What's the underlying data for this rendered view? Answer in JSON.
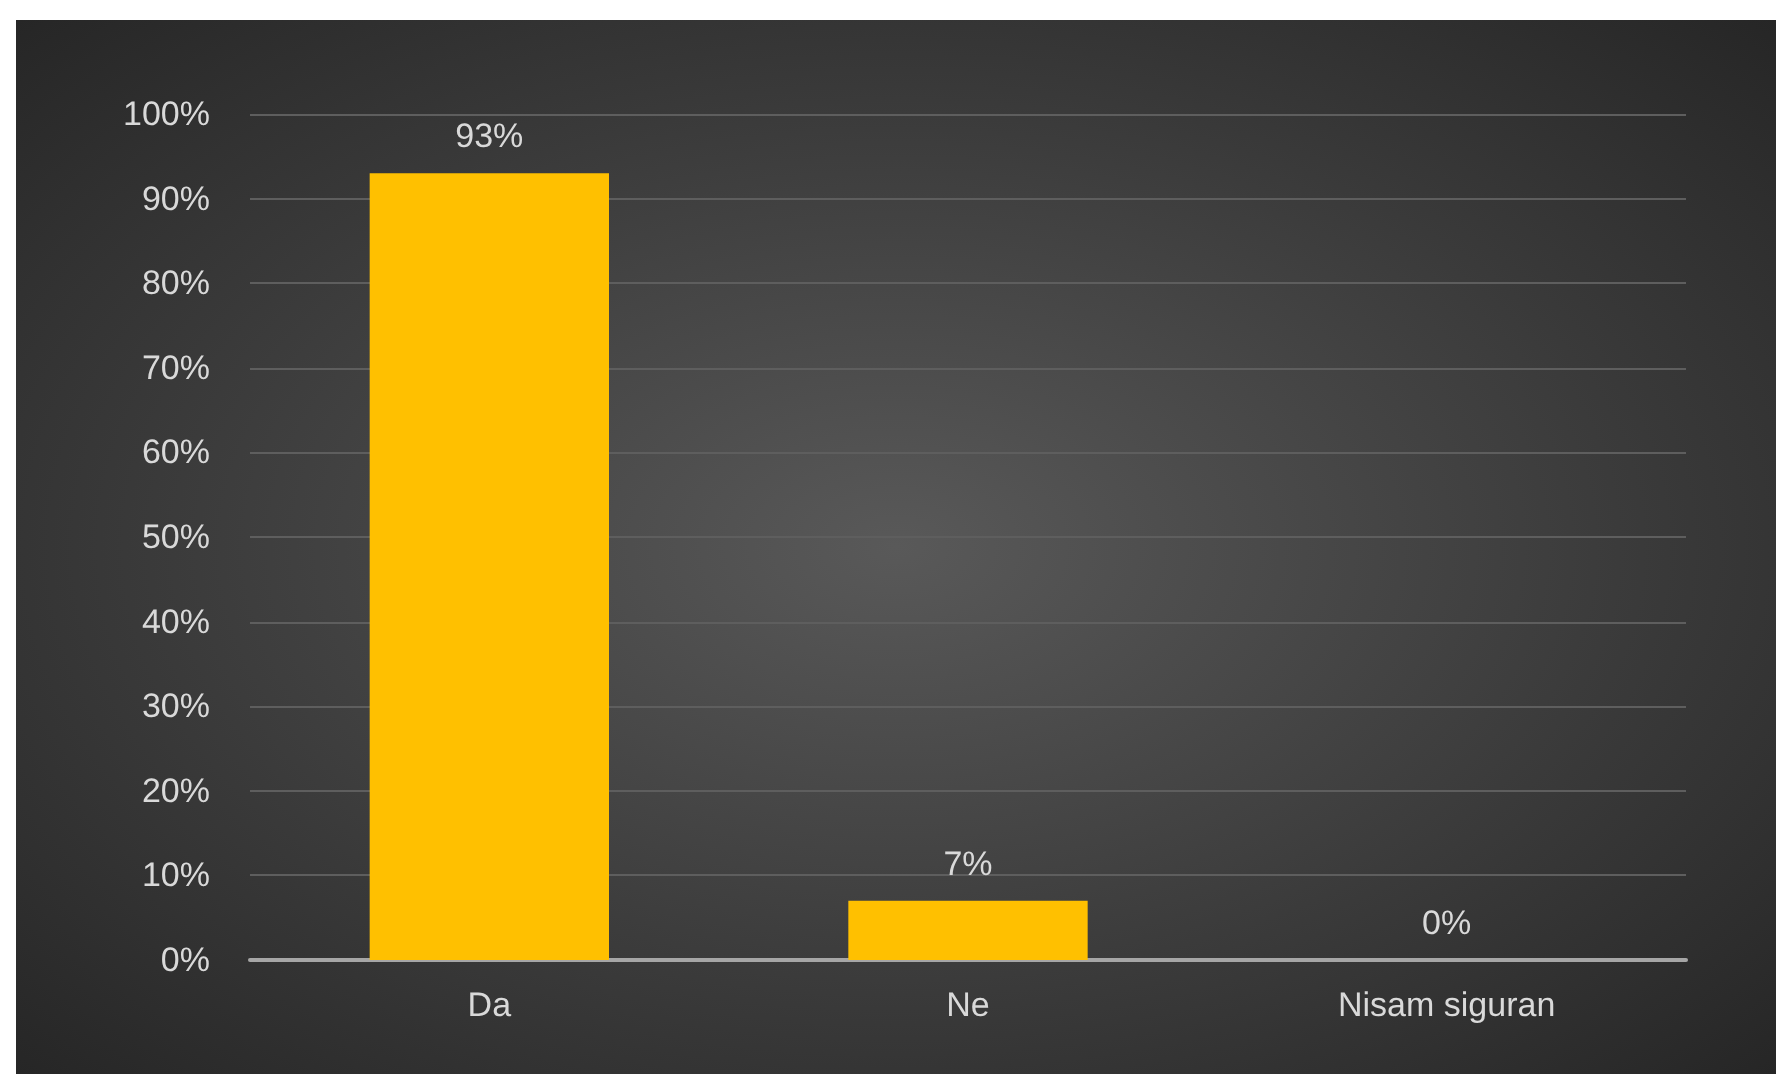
{
  "chart_data": {
    "type": "bar",
    "categories": [
      "Da",
      "Ne",
      "Nisam siguran"
    ],
    "values": [
      93,
      7,
      0
    ],
    "color": "#ffc000",
    "value_labels": [
      "93%",
      "7%",
      "0%"
    ],
    "ylim": [
      0,
      100
    ],
    "yticks": [
      {
        "value": 0,
        "label": "0%"
      },
      {
        "value": 10,
        "label": "10%"
      },
      {
        "value": 20,
        "label": "20%"
      },
      {
        "value": 30,
        "label": "30%"
      },
      {
        "value": 40,
        "label": "40%"
      },
      {
        "value": 50,
        "label": "50%"
      },
      {
        "value": 60,
        "label": "60%"
      },
      {
        "value": 70,
        "label": "70%"
      },
      {
        "value": 80,
        "label": "80%"
      },
      {
        "value": 90,
        "label": "90%"
      },
      {
        "value": 100,
        "label": "100%"
      }
    ],
    "grid": "y"
  }
}
